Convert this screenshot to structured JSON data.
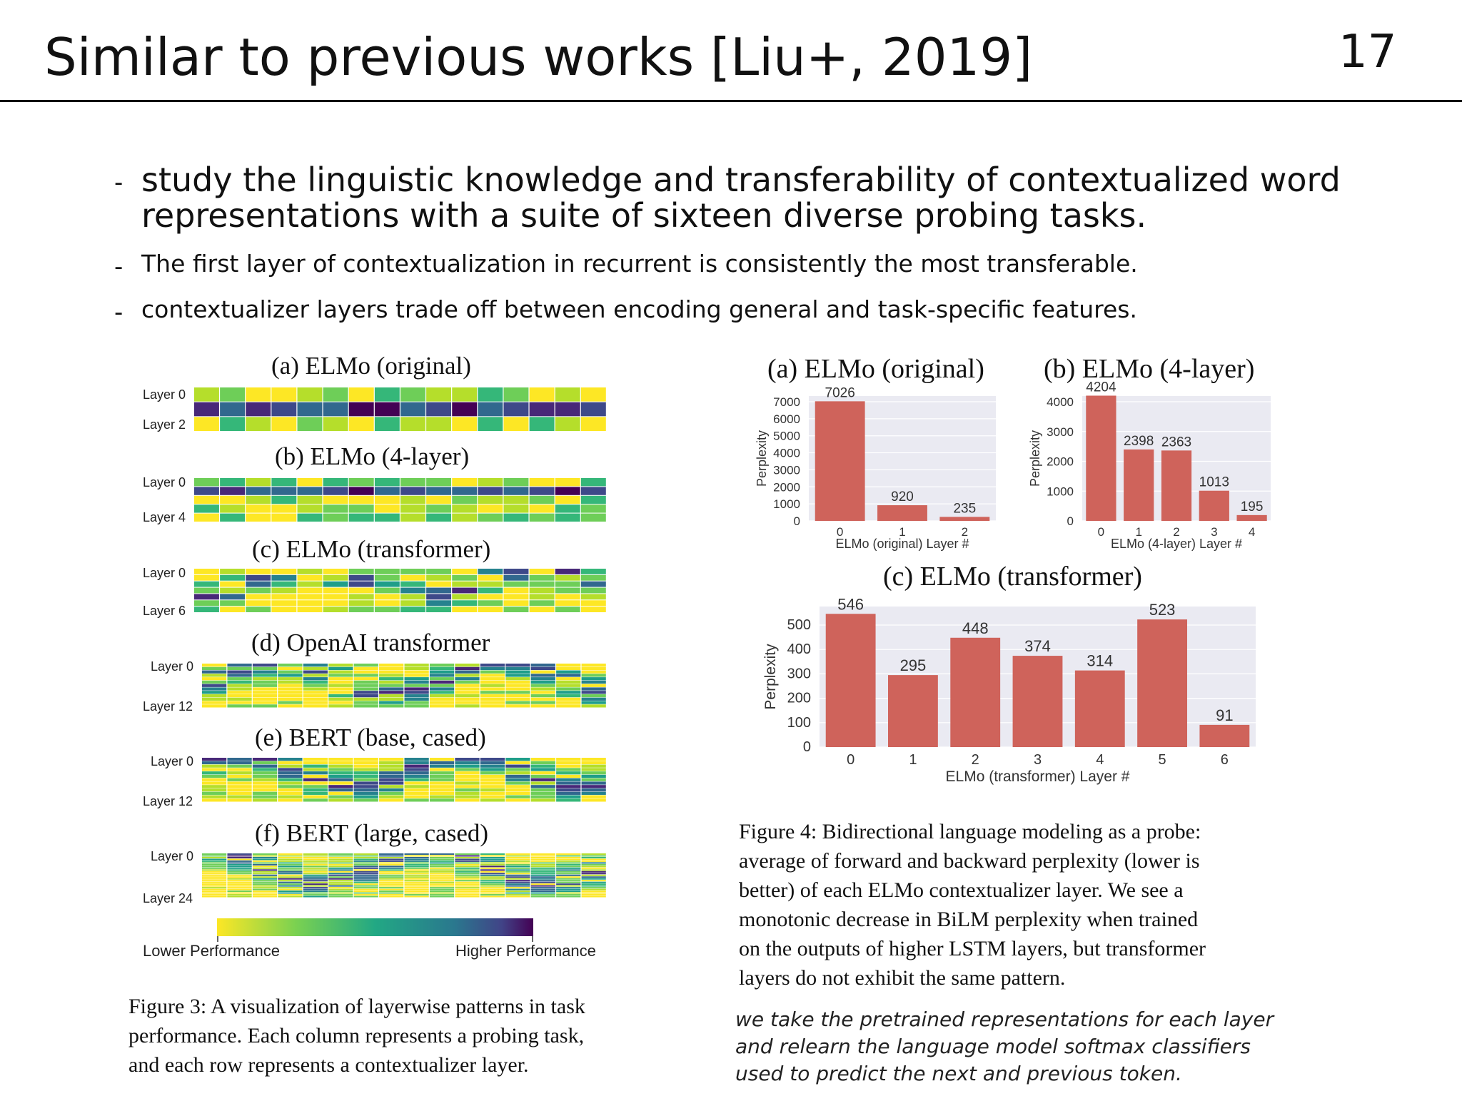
{
  "slide": {
    "title": "Similar to previous works [Liu+, 2019]",
    "page_number": "17",
    "bullets": [
      {
        "dash": "-",
        "lines": [
          "study the linguistic knowledge and transferability of contextualized word",
          "representations with a suite of sixteen diverse probing tasks."
        ]
      },
      {
        "dash": "-",
        "text": "The first layer of contextualization in recurrent is consistently the most transferable."
      },
      {
        "dash": "-",
        "text": "contextualizer layers trade off between encoding general and task-specific features."
      }
    ],
    "note_lines": [
      "we take the pretrained representations for each layer",
      "and relearn the language model softmax classifiers",
      "used to predict the next and previous token."
    ]
  },
  "figure3": {
    "panels": [
      {
        "label": "(a) ELMo (original)",
        "top_label": "Layer 0",
        "bottom_label": "Layer 2",
        "layers": 3
      },
      {
        "label": "(b) ELMo (4-layer)",
        "top_label": "Layer 0",
        "bottom_label": "Layer 4",
        "layers": 5
      },
      {
        "label": "(c) ELMo (transformer)",
        "top_label": "Layer 0",
        "bottom_label": "Layer 6",
        "layers": 7
      },
      {
        "label": "(d) OpenAI transformer",
        "top_label": "Layer 0",
        "bottom_label": "Layer 12",
        "layers": 13
      },
      {
        "label": "(e) BERT (base, cased)",
        "top_label": "Layer 0",
        "bottom_label": "Layer 12",
        "layers": 13
      },
      {
        "label": "(f) BERT (large, cased)",
        "top_label": "Layer 0",
        "bottom_label": "Layer 24",
        "layers": 25
      }
    ],
    "colorbar": {
      "low_label": "Lower Performance",
      "high_label": "Higher Performance"
    },
    "caption_lines": [
      "Figure 3:  A visualization of layerwise patterns in task",
      "performance.  Each column represents a probing task,",
      "and each row represents a contextualizer layer."
    ]
  },
  "figure4": {
    "caption_lines": [
      "Figure 4:  Bidirectional language modeling as a probe:",
      "average of forward and backward perplexity (lower is",
      "better) of each ELMo contextualizer layer.  We see a",
      "monotonic decrease in BiLM perplexity when trained",
      "on the outputs of higher LSTM layers, but transformer",
      "layers do not exhibit the same pattern."
    ]
  },
  "colors": {
    "bar": "#cf635b",
    "plot_bg": "#eaeaf2"
  },
  "chart_data": [
    {
      "type": "heatmap",
      "title": "(a) ELMo (original)",
      "ylabel_top": "Layer 0",
      "ylabel_bottom": "Layer 2",
      "rows": 3,
      "columns": 16,
      "colormap": "viridis (reversed)",
      "colorbar_labels": [
        "Lower Performance",
        "Higher Performance"
      ]
    },
    {
      "type": "bar",
      "title": "(a) ELMo (original)",
      "categories": [
        "0",
        "1",
        "2"
      ],
      "values": [
        7026,
        920,
        235
      ],
      "xlabel": "ELMo (original) Layer #",
      "ylabel": "Perplexity",
      "ylim": [
        0,
        7000
      ],
      "yticks": [
        "0",
        "1000",
        "2000",
        "3000",
        "4000",
        "5000",
        "6000",
        "7000"
      ],
      "grid": true
    },
    {
      "type": "bar",
      "title": "(b) ELMo (4-layer)",
      "categories": [
        "0",
        "1",
        "2",
        "3",
        "4"
      ],
      "values": [
        4204,
        2398,
        2363,
        1013,
        195
      ],
      "xlabel": "ELMo (4-layer) Layer #",
      "ylabel": "Perplexity",
      "ylim": [
        0,
        4000
      ],
      "yticks": [
        "0",
        "1000",
        "2000",
        "3000",
        "4000"
      ],
      "grid": true
    },
    {
      "type": "bar",
      "title": "(c) ELMo (transformer)",
      "categories": [
        "0",
        "1",
        "2",
        "3",
        "4",
        "5",
        "6"
      ],
      "values": [
        546,
        295,
        448,
        374,
        314,
        523,
        91
      ],
      "xlabel": "ELMo (transformer) Layer #",
      "ylabel": "Perplexity",
      "ylim": [
        0,
        500
      ],
      "yticks": [
        "0",
        "100",
        "200",
        "300",
        "400",
        "500"
      ],
      "grid": true
    }
  ]
}
